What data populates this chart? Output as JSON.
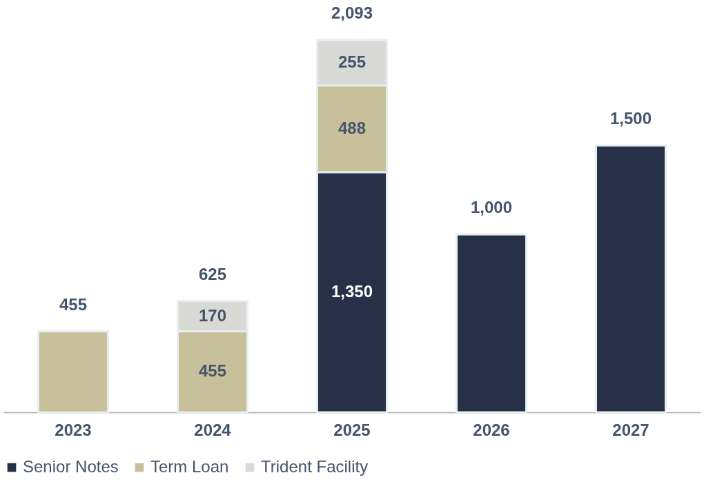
{
  "chart_data": {
    "type": "bar",
    "stacked": true,
    "categories": [
      "2023",
      "2024",
      "2025",
      "2026",
      "2027"
    ],
    "series": [
      {
        "name": "Senior Notes",
        "color": "#263047",
        "values": [
          null,
          null,
          1350,
          1000,
          1500
        ],
        "value_labels": [
          null,
          null,
          "1,350",
          null,
          null
        ]
      },
      {
        "name": "Term Loan",
        "color": "#c8c09a",
        "values": [
          455,
          455,
          488,
          null,
          null
        ],
        "value_labels": [
          null,
          "455",
          "488",
          null,
          null
        ]
      },
      {
        "name": "Trident Facility",
        "color": "#d9d9d6",
        "values": [
          null,
          170,
          255,
          null,
          null
        ],
        "value_labels": [
          null,
          "170",
          "255",
          null,
          null
        ]
      }
    ],
    "totals": [
      "455",
      "625",
      "2,093",
      "1,000",
      "1,500"
    ],
    "legend": "bottom",
    "grid": false
  }
}
